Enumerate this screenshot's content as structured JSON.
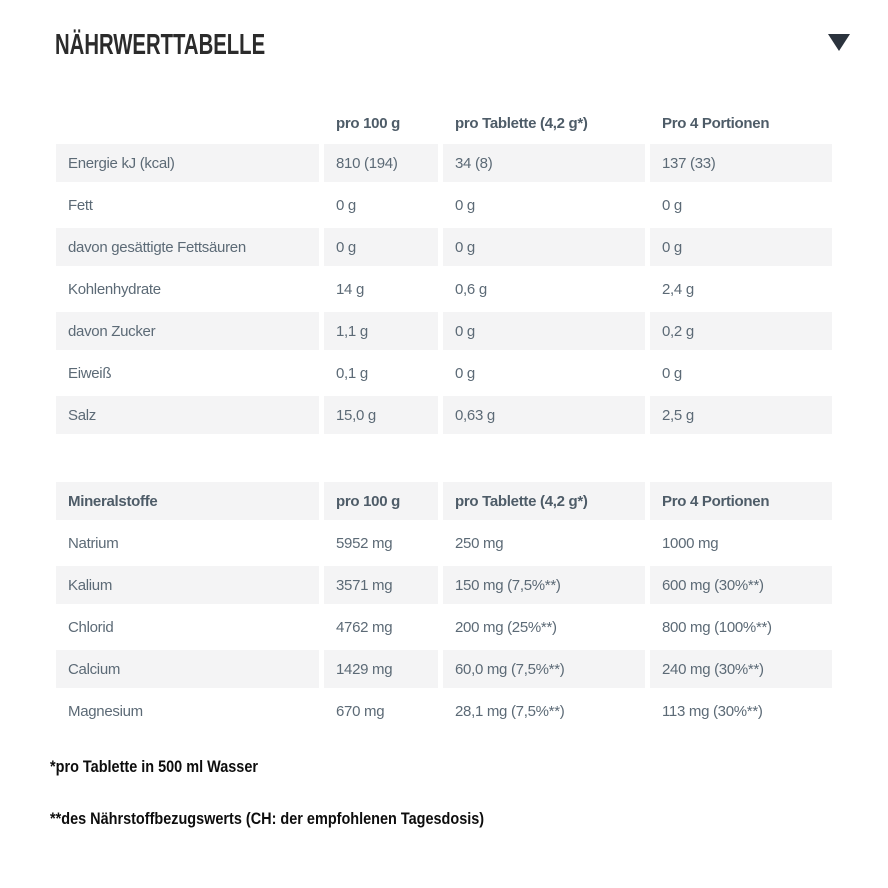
{
  "title": "NÄHRWERTTABELLE",
  "icons": {
    "collapse_arrow": "triangle-down"
  },
  "colors": {
    "row_shade": "#f4f4f5",
    "table_text": "#5c6a76",
    "table_header_text": "#4e5c68",
    "title_text": "#2b2b2b",
    "footnote_text": "#0d0d0d",
    "arrow": "#2b333d"
  },
  "nutrition": {
    "header": [
      "",
      "pro 100 g",
      "pro Tablette (4,2 g*)",
      "Pro 4 Portionen"
    ],
    "rows": [
      [
        "Energie kJ (kcal)",
        "810 (194)",
        "34 (8)",
        "137 (33)"
      ],
      [
        "Fett",
        "0 g",
        "0 g",
        "0 g"
      ],
      [
        "davon gesättigte Fettsäuren",
        "0 g",
        "0 g",
        "0 g"
      ],
      [
        "Kohlenhydrate",
        "14 g",
        "0,6 g",
        "2,4 g"
      ],
      [
        "davon Zucker",
        "1,1 g",
        "0 g",
        "0,2 g"
      ],
      [
        "Eiweiß",
        "0,1 g",
        "0 g",
        "0 g"
      ],
      [
        "Salz",
        "15,0 g",
        "0,63 g",
        "2,5 g"
      ]
    ]
  },
  "minerals": {
    "header": [
      "Mineralstoffe",
      "pro 100 g",
      "pro Tablette (4,2 g*)",
      "Pro 4 Portionen"
    ],
    "rows": [
      [
        "Natrium",
        "5952 mg",
        "250 mg",
        "1000 mg"
      ],
      [
        "Kalium",
        "3571 mg",
        "150 mg (7,5%**)",
        "600 mg (30%**)"
      ],
      [
        "Chlorid",
        "4762 mg",
        "200 mg (25%**)",
        "800 mg (100%**)"
      ],
      [
        "Calcium",
        "1429 mg",
        "60,0 mg (7,5%**)",
        "240 mg (30%**)"
      ],
      [
        "Magnesium",
        "670 mg",
        "28,1 mg (7,5%**)",
        "113 mg (30%**)"
      ]
    ]
  },
  "footnotes": [
    "*pro Tablette in 500 ml Wasser",
    "**des Nährstoffbezugswerts (CH: der empfohlenen Tagesdosis)"
  ]
}
